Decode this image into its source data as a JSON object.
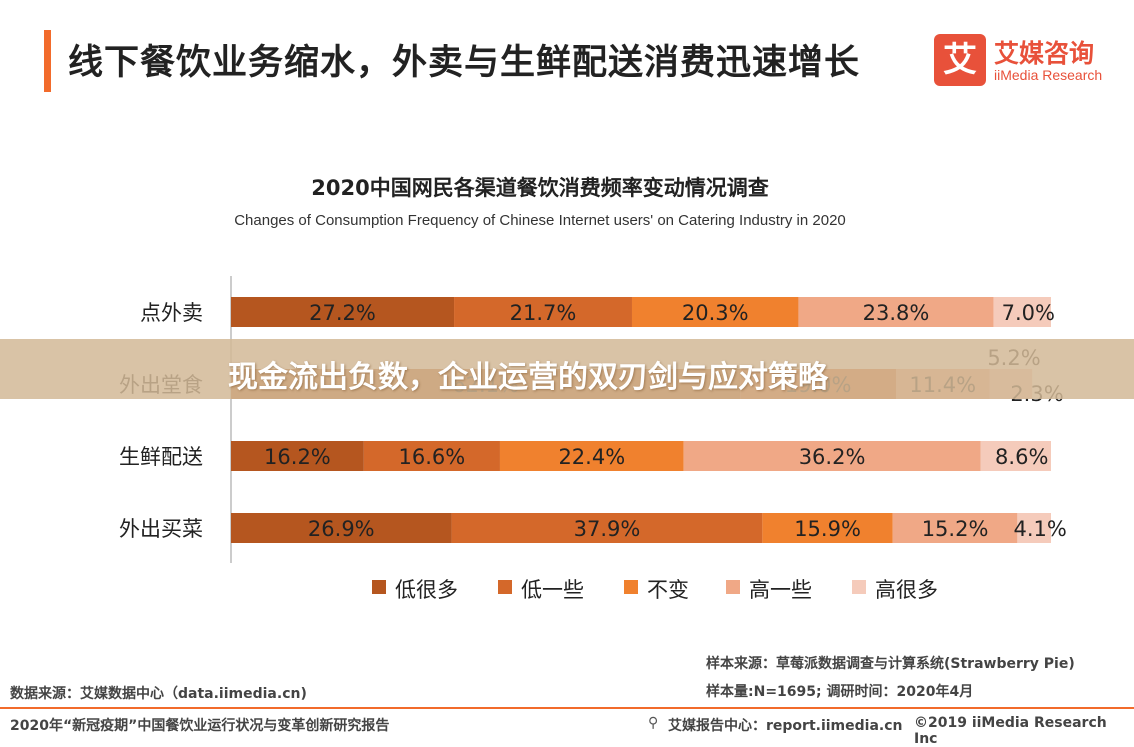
{
  "page_title": "线下餐饮业务缩水，外卖与生鲜配送消费迅速增长",
  "logo": {
    "mark": "艾",
    "name_cn": "艾媒咨询",
    "name_en": "iiMedia Research"
  },
  "overlay_text": "现金流出负数，企业运营的双刃剑与应对策略",
  "notes": {
    "sample_source": "样本来源：草莓派数据调查与计算系统(Strawberry Pie)",
    "sample_size": "样本量:N=1695; 调研时间：2020年4月",
    "data_source": "数据来源：艾媒数据中心（data.iimedia.cn)",
    "report_title": "2020年“新冠疫期”中国餐饮业运行状况与变革创新研究报告",
    "report_center": "艾媒报告中心：report.iimedia.cn",
    "copyright": "©2019  iiMedia Research  Inc"
  },
  "colors": {
    "accent": "#f26b2b",
    "series": [
      "#b5561f",
      "#d4682a",
      "#f0812e",
      "#f0a886",
      "#f5cbbb"
    ]
  },
  "chart_data": {
    "type": "bar",
    "orientation": "horizontal",
    "stacked": true,
    "percent": true,
    "title": "2020中国网民各渠道餐饮消费频率变动情况调查",
    "subtitle": "Changes of Consumption Frequency of Chinese Internet users' on Catering Industry in 2020",
    "categories": [
      "点外卖",
      "外出堂食",
      "生鲜配送",
      "外出买菜"
    ],
    "series": [
      {
        "name": "低很多",
        "values": [
          27.2,
          62.1,
          16.2,
          26.9
        ]
      },
      {
        "name": "低一些",
        "values": [
          21.7,
          19.0,
          16.6,
          37.9
        ]
      },
      {
        "name": "不变",
        "values": [
          20.3,
          0.0,
          22.4,
          15.9
        ]
      },
      {
        "name": "高一些",
        "values": [
          23.8,
          11.4,
          36.2,
          15.2
        ]
      },
      {
        "name": "高很多",
        "values": [
          7.0,
          5.2,
          8.6,
          4.1
        ]
      }
    ],
    "extra_labels": [
      "2.3%"
    ],
    "legend_position": "bottom",
    "xlim": [
      0,
      100
    ],
    "grid": false
  }
}
